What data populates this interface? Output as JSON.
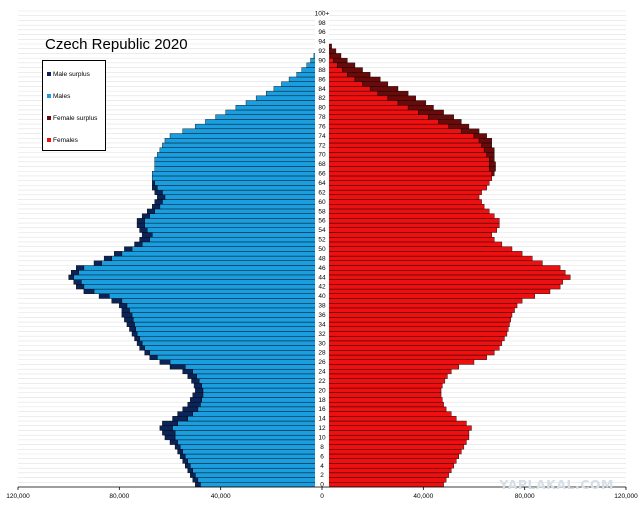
{
  "chart_data": {
    "type": "bar",
    "orientation": "horizontal",
    "title": "Czech Republic 2020",
    "legend": {
      "placement": "top-left",
      "entries": [
        {
          "label": "Male surplus",
          "color": "#0b2459"
        },
        {
          "label": "Males",
          "color": "#1a9ee0"
        },
        {
          "label": "Female surplus",
          "color": "#6b0a0a"
        },
        {
          "label": "Females",
          "color": "#ee1010"
        }
      ]
    },
    "x_ticks": [
      "120,000",
      "80,000",
      "40,000",
      "0",
      "40,000",
      "80,000",
      "120,000"
    ],
    "x_range": [
      -120000,
      120000
    ],
    "grid": true,
    "age_labels": [
      "0",
      "2",
      "4",
      "6",
      "8",
      "10",
      "12",
      "14",
      "16",
      "18",
      "20",
      "22",
      "24",
      "26",
      "28",
      "30",
      "32",
      "34",
      "36",
      "38",
      "40",
      "42",
      "44",
      "46",
      "48",
      "50",
      "52",
      "54",
      "56",
      "58",
      "60",
      "62",
      "64",
      "66",
      "68",
      "70",
      "72",
      "74",
      "76",
      "78",
      "80",
      "82",
      "84",
      "86",
      "88",
      "90",
      "92",
      "94",
      "96",
      "98",
      "100+"
    ],
    "ages": [
      0,
      1,
      2,
      3,
      4,
      5,
      6,
      7,
      8,
      9,
      10,
      11,
      12,
      13,
      14,
      15,
      16,
      17,
      18,
      19,
      20,
      21,
      22,
      23,
      24,
      25,
      26,
      27,
      28,
      29,
      30,
      31,
      32,
      33,
      34,
      35,
      36,
      37,
      38,
      39,
      40,
      41,
      42,
      43,
      44,
      45,
      46,
      47,
      48,
      49,
      50,
      51,
      52,
      53,
      54,
      55,
      56,
      57,
      58,
      59,
      60,
      61,
      62,
      63,
      64,
      65,
      66,
      67,
      68,
      69,
      70,
      71,
      72,
      73,
      74,
      75,
      76,
      77,
      78,
      79,
      80,
      81,
      82,
      83,
      84,
      85,
      86,
      87,
      88,
      89,
      90,
      91,
      92,
      93,
      94,
      95,
      96,
      97,
      98,
      99,
      100
    ],
    "male": [
      50000,
      51000,
      52000,
      53000,
      54000,
      55000,
      56000,
      57000,
      58000,
      60000,
      62000,
      63000,
      64000,
      63000,
      59000,
      57000,
      55000,
      53000,
      52000,
      51000,
      50000,
      50500,
      51500,
      53000,
      55000,
      60000,
      64000,
      68000,
      70000,
      72000,
      73000,
      74000,
      75000,
      76000,
      77000,
      78000,
      79000,
      79000,
      80000,
      83000,
      88000,
      94000,
      97000,
      98000,
      100000,
      99000,
      97000,
      90000,
      86000,
      82000,
      78000,
      74000,
      72000,
      71000,
      72000,
      73000,
      73000,
      71000,
      69000,
      67000,
      66000,
      65000,
      66000,
      67000,
      67000,
      67000,
      67000,
      66000,
      66000,
      66000,
      65000,
      64000,
      63000,
      62000,
      60000,
      55000,
      50000,
      46000,
      42000,
      38000,
      34000,
      30000,
      26000,
      22000,
      19000,
      16000,
      13000,
      10000,
      8000,
      6000,
      4500,
      3200,
      2200,
      1500,
      1000,
      600,
      400,
      250,
      150,
      100,
      60
    ],
    "female": [
      48000,
      49000,
      50000,
      51000,
      52000,
      53000,
      54000,
      55000,
      56000,
      57000,
      58000,
      58000,
      59000,
      57000,
      53000,
      51000,
      49000,
      48000,
      47500,
      47000,
      47000,
      47500,
      48500,
      49500,
      51000,
      54000,
      60000,
      65000,
      68000,
      70000,
      71000,
      72000,
      73000,
      73500,
      74000,
      74500,
      75000,
      76000,
      77000,
      79000,
      84000,
      90000,
      94000,
      95000,
      98000,
      96000,
      94000,
      87000,
      83000,
      79000,
      75000,
      71000,
      68000,
      67000,
      69000,
      70000,
      70000,
      68000,
      66000,
      64000,
      63000,
      62000,
      63000,
      65000,
      66000,
      67000,
      68000,
      68500,
      68500,
      68000,
      68000,
      68000,
      67000,
      67000,
      65000,
      62000,
      58000,
      55000,
      52000,
      48000,
      44000,
      41000,
      37000,
      34000,
      30000,
      26000,
      23000,
      19000,
      16000,
      13000,
      10000,
      7500,
      5500,
      3800,
      2500,
      1600,
      1000,
      600,
      350,
      200,
      150
    ]
  },
  "watermark": "YAPLAKAL.COM"
}
